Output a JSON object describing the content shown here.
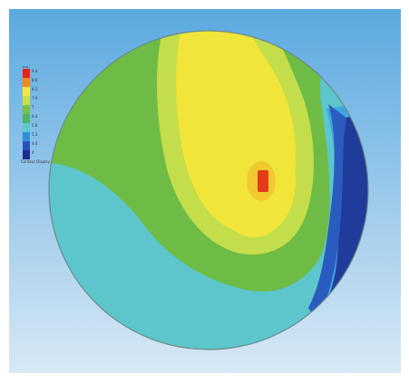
{
  "viewport": {
    "background_top": "#5aa9e0",
    "background_bottom": "#d8e8f5"
  },
  "legend": {
    "title": "Prop",
    "levels": [
      {
        "label": "9.4",
        "color": "#e8221a"
      },
      {
        "label": "8.8",
        "color": "#f58a1a"
      },
      {
        "label": "8.2",
        "color": "#f6e63a"
      },
      {
        "label": "7.6",
        "color": "#c9e04a"
      },
      {
        "label": "7",
        "color": "#79c04a"
      },
      {
        "label": "6.4",
        "color": "#4fb566"
      },
      {
        "label": "5.8",
        "color": "#5ec7cf"
      },
      {
        "label": "5.2",
        "color": "#2f8fd8"
      },
      {
        "label": "4.6",
        "color": "#2b4fb8"
      },
      {
        "label": "4",
        "color": "#1d2d8a"
      }
    ],
    "footer": "Contour Display"
  },
  "contour_colors": {
    "outline": "#6b8a8a",
    "green": "#6ebc45",
    "light_green": "#8cc94f",
    "yellow_green": "#c3de4a",
    "yellow": "#f2e53a",
    "orange": "#f3b528",
    "red": "#e23a1a",
    "teal": "#5cc6cc",
    "light_blue": "#3da8e0",
    "blue": "#2a5cbf",
    "dark_blue": "#203c9a"
  }
}
